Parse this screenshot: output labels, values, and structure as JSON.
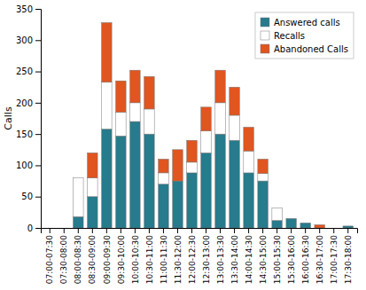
{
  "chart_data": {
    "type": "bar",
    "stacked": true,
    "categories": [
      "07:00-07:30",
      "07:30-08:00",
      "08:00-08:30",
      "08:30-09:00",
      "09:00-09:30",
      "09:30-10:00",
      "10:00-10:30",
      "10:30-11:00",
      "11:00-11:30",
      "11:30-12:00",
      "12:00-12:30",
      "12:30-13:00",
      "13:00-13:30",
      "13:30-14:00",
      "14:00-14:30",
      "14:30-15:00",
      "15:00-15:30",
      "15:30-16:00",
      "16:00-16:30",
      "16:30-17:00",
      "17:00-17:30",
      "17:30-18:00"
    ],
    "series": [
      {
        "name": "Answered calls",
        "color": "#267b8c",
        "values": [
          0,
          0,
          18,
          50,
          158,
          147,
          170,
          150,
          70,
          75,
          88,
          120,
          150,
          140,
          88,
          75,
          12,
          15,
          8,
          0,
          0,
          3
        ]
      },
      {
        "name": "Recalls",
        "color": "#ffffff",
        "values": [
          0,
          0,
          62,
          30,
          75,
          38,
          30,
          40,
          18,
          0,
          17,
          35,
          50,
          40,
          35,
          12,
          20,
          0,
          0,
          0,
          0,
          0
        ]
      },
      {
        "name": "Abandoned Calls",
        "color": "#e05520",
        "values": [
          0,
          0,
          0,
          40,
          95,
          50,
          52,
          52,
          22,
          50,
          35,
          38,
          52,
          45,
          38,
          23,
          0,
          0,
          0,
          5,
          0,
          0
        ]
      }
    ],
    "ylabel": "Calls",
    "ylim": [
      0,
      350
    ],
    "yticks": [
      0,
      50,
      100,
      150,
      200,
      250,
      300,
      350
    ],
    "grid": false,
    "legend": "upper right"
  }
}
